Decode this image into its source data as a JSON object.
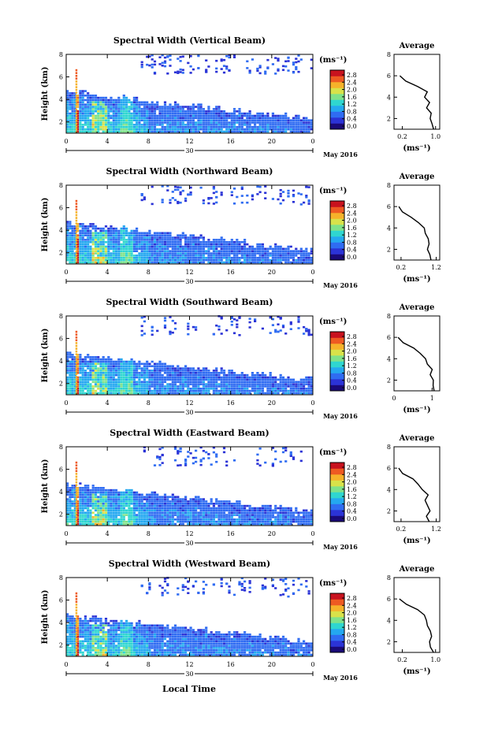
{
  "figure": {
    "common_xlabel": "Local Time",
    "date_label": "May 2016",
    "colorbar_unit": "(ms⁻¹)",
    "avg_title": "Average",
    "avg_unit": "(ms⁻¹)",
    "colorbar_ticks": [
      "0.0",
      "0.4",
      "0.8",
      "1.2",
      "1.6",
      "2.0",
      "2.4",
      "2.8"
    ],
    "colormap": [
      "#1a0a78",
      "#2b33d6",
      "#2f6cf2",
      "#24a8f0",
      "#2fd6d0",
      "#7fe28a",
      "#d8e24a",
      "#f6b22a",
      "#ee5a22",
      "#c8121e"
    ]
  },
  "chart_data": [
    {
      "type": "heatmap",
      "title": "Spectral Width (Vertical Beam)",
      "ylabel": "Height (km)",
      "ylim": [
        1,
        8
      ],
      "yticks": [
        2,
        4,
        6,
        8
      ],
      "xticks": [
        "0",
        "4",
        "8",
        "12",
        "16",
        "20",
        "0"
      ],
      "xlim_hours": [
        0,
        24
      ],
      "day_label": "30",
      "color_range": [
        0.0,
        2.8
      ],
      "average_profile": {
        "xticks": [
          "0.2",
          "1.0"
        ],
        "xlim": [
          0.0,
          1.1
        ],
        "yticks": [
          2,
          4,
          6,
          8
        ],
        "height_km": [
          1.0,
          1.5,
          2.0,
          2.5,
          3.0,
          3.5,
          4.0,
          4.5,
          5.0,
          5.5,
          6.0
        ],
        "mean_width": [
          0.95,
          0.9,
          0.85,
          0.9,
          0.8,
          0.85,
          0.75,
          0.8,
          0.55,
          0.3,
          0.15
        ]
      }
    },
    {
      "type": "heatmap",
      "title": "Spectral Width (Northward Beam)",
      "ylabel": "Height (km)",
      "ylim": [
        1,
        8
      ],
      "yticks": [
        2,
        4,
        6,
        8
      ],
      "xticks": [
        "0",
        "4",
        "8",
        "12",
        "16",
        "20",
        "0"
      ],
      "xlim_hours": [
        0,
        24
      ],
      "day_label": "30",
      "color_range": [
        0.0,
        2.8
      ],
      "average_profile": {
        "xticks": [
          "0.2",
          "1.2"
        ],
        "xlim": [
          0.0,
          1.3
        ],
        "yticks": [
          2,
          4,
          6,
          8
        ],
        "height_km": [
          1.0,
          1.5,
          2.0,
          2.5,
          3.0,
          3.5,
          4.0,
          4.5,
          5.0,
          5.5,
          6.0
        ],
        "mean_width": [
          1.05,
          1.0,
          0.95,
          1.0,
          0.95,
          0.9,
          0.85,
          0.7,
          0.5,
          0.25,
          0.12
        ]
      }
    },
    {
      "type": "heatmap",
      "title": "Spectral Width (Southward Beam)",
      "ylabel": "Height (km)",
      "ylim": [
        1,
        8
      ],
      "yticks": [
        2,
        4,
        6,
        8
      ],
      "xticks": [
        "0",
        "4",
        "8",
        "12",
        "16",
        "20",
        "0"
      ],
      "xlim_hours": [
        0,
        24
      ],
      "day_label": "30",
      "color_range": [
        0.0,
        2.8
      ],
      "average_profile": {
        "xticks": [
          "0",
          "1"
        ],
        "xlim": [
          0.0,
          1.2
        ],
        "yticks": [
          2,
          4,
          6,
          8
        ],
        "height_km": [
          1.0,
          1.5,
          2.0,
          2.5,
          3.0,
          3.5,
          4.0,
          4.5,
          5.0,
          5.5,
          6.0
        ],
        "mean_width": [
          1.05,
          1.0,
          1.05,
          0.95,
          1.0,
          0.9,
          0.85,
          0.7,
          0.5,
          0.25,
          0.12
        ]
      }
    },
    {
      "type": "heatmap",
      "title": "Spectral Width (Eastward Beam)",
      "ylabel": "Height (km)",
      "ylim": [
        1,
        8
      ],
      "yticks": [
        2,
        4,
        6,
        8
      ],
      "xticks": [
        "0",
        "4",
        "8",
        "12",
        "16",
        "20",
        "0"
      ],
      "xlim_hours": [
        0,
        24
      ],
      "day_label": "30",
      "color_range": [
        0.0,
        2.8
      ],
      "average_profile": {
        "xticks": [
          "0.2",
          "1.2"
        ],
        "xlim": [
          0.0,
          1.3
        ],
        "yticks": [
          2,
          4,
          6,
          8
        ],
        "height_km": [
          1.0,
          1.5,
          2.0,
          2.5,
          3.0,
          3.5,
          4.0,
          4.5,
          5.0,
          5.5,
          6.0
        ],
        "mean_width": [
          1.0,
          0.95,
          1.0,
          0.95,
          0.9,
          0.95,
          0.8,
          0.7,
          0.55,
          0.25,
          0.12
        ]
      }
    },
    {
      "type": "heatmap",
      "title": "Spectral Width (Westward Beam)",
      "ylabel": "Height (km)",
      "ylim": [
        1,
        8
      ],
      "yticks": [
        2,
        4,
        6,
        8
      ],
      "xticks": [
        "0",
        "4",
        "8",
        "12",
        "16",
        "20",
        "0"
      ],
      "xlim_hours": [
        0,
        24
      ],
      "day_label": "30",
      "color_range": [
        0.0,
        2.8
      ],
      "average_profile": {
        "xticks": [
          "0.2",
          "1.0"
        ],
        "xlim": [
          0.0,
          1.1
        ],
        "yticks": [
          2,
          4,
          6,
          8
        ],
        "height_km": [
          1.0,
          1.5,
          2.0,
          2.5,
          3.0,
          3.5,
          4.0,
          4.5,
          5.0,
          5.5,
          6.0
        ],
        "mean_width": [
          0.95,
          0.9,
          0.85,
          0.9,
          0.85,
          0.8,
          0.75,
          0.75,
          0.55,
          0.3,
          0.15
        ]
      }
    }
  ]
}
